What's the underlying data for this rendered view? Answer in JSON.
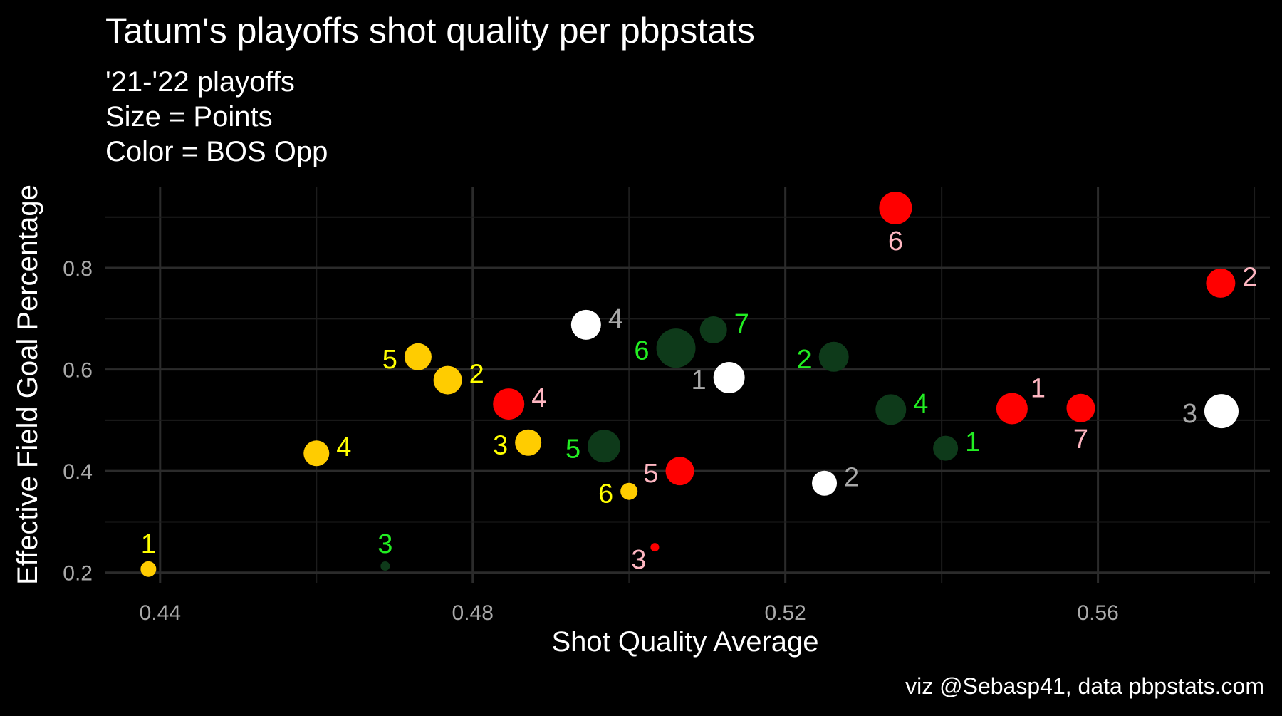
{
  "chart_data": {
    "type": "scatter",
    "title": "Tatum's playoffs shot quality per pbpstats",
    "subtitle_lines": [
      "'21-'22 playoffs",
      "Size = Points",
      "Color = BOS Opp"
    ],
    "xlabel": "Shot Quality Average",
    "ylabel": "Effective Field Goal Percentage",
    "caption": "viz @Sebasp41, data pbpstats.com",
    "xlim": [
      0.433,
      0.582
    ],
    "ylim": [
      0.18,
      0.96
    ],
    "x_ticks": [
      0.44,
      0.48,
      0.52,
      0.56
    ],
    "x_tick_labels": [
      "0.44",
      "0.48",
      "0.52",
      "0.56"
    ],
    "y_ticks": [
      0.2,
      0.4,
      0.6,
      0.8
    ],
    "y_tick_labels": [
      "0.2",
      "0.4",
      "0.6",
      "0.8"
    ],
    "grid": true,
    "background": "#000000",
    "gridline_color": "#2b2b2b",
    "series": [
      {
        "color": "#ffcc00",
        "label_color": "#ffff00",
        "points": [
          {
            "label": "1",
            "x": 0.4385,
            "y": 0.207,
            "size": 22,
            "label_pos": "top"
          },
          {
            "label": "2",
            "x": 0.4768,
            "y": 0.579,
            "size": 40,
            "label_pos": "right"
          },
          {
            "label": "3",
            "x": 0.4871,
            "y": 0.456,
            "size": 37,
            "label_pos": "left"
          },
          {
            "label": "4",
            "x": 0.46,
            "y": 0.435,
            "size": 36,
            "label_pos": "right"
          },
          {
            "label": "5",
            "x": 0.473,
            "y": 0.625,
            "size": 38,
            "label_pos": "left"
          },
          {
            "label": "6",
            "x": 0.5,
            "y": 0.36,
            "size": 24,
            "label_pos": "left"
          }
        ]
      },
      {
        "color": "#0e3a1a",
        "label_color": "#22ee22",
        "points": [
          {
            "label": "1",
            "x": 0.5405,
            "y": 0.445,
            "size": 35,
            "label_pos": "right"
          },
          {
            "label": "2",
            "x": 0.5262,
            "y": 0.625,
            "size": 42,
            "label_pos": "left"
          },
          {
            "label": "3",
            "x": 0.4688,
            "y": 0.213,
            "size": 13,
            "label_pos": "top"
          },
          {
            "label": "4",
            "x": 0.5335,
            "y": 0.521,
            "size": 43,
            "label_pos": "right"
          },
          {
            "label": "5",
            "x": 0.4968,
            "y": 0.449,
            "size": 46,
            "label_pos": "left"
          },
          {
            "label": "6",
            "x": 0.506,
            "y": 0.642,
            "size": 55,
            "label_pos": "left"
          },
          {
            "label": "7",
            "x": 0.5108,
            "y": 0.678,
            "size": 38,
            "label_pos": "right"
          }
        ]
      },
      {
        "color": "#ffffff",
        "label_color": "#a9a9a9",
        "points": [
          {
            "label": "1",
            "x": 0.5128,
            "y": 0.584,
            "size": 44,
            "label_pos": "left"
          },
          {
            "label": "2",
            "x": 0.525,
            "y": 0.376,
            "size": 35,
            "label_pos": "right"
          },
          {
            "label": "3",
            "x": 0.5758,
            "y": 0.518,
            "size": 48,
            "label_pos": "left"
          },
          {
            "label": "4",
            "x": 0.4945,
            "y": 0.688,
            "size": 42,
            "label_pos": "right"
          }
        ]
      },
      {
        "color": "#ff0000",
        "label_color": "#ffb6c1",
        "points": [
          {
            "label": "1",
            "x": 0.549,
            "y": 0.523,
            "size": 44,
            "label_pos": "topright"
          },
          {
            "label": "2",
            "x": 0.5757,
            "y": 0.77,
            "size": 41,
            "label_pos": "right"
          },
          {
            "label": "3",
            "x": 0.5033,
            "y": 0.25,
            "size": 12,
            "label_pos": "bottomleft"
          },
          {
            "label": "4",
            "x": 0.4846,
            "y": 0.532,
            "size": 44,
            "label_pos": "right"
          },
          {
            "label": "5",
            "x": 0.5065,
            "y": 0.4,
            "size": 40,
            "label_pos": "left"
          },
          {
            "label": "6",
            "x": 0.5341,
            "y": 0.918,
            "size": 46,
            "label_pos": "bottom"
          },
          {
            "label": "7",
            "x": 0.5578,
            "y": 0.524,
            "size": 40,
            "label_pos": "bottom"
          }
        ]
      }
    ]
  }
}
